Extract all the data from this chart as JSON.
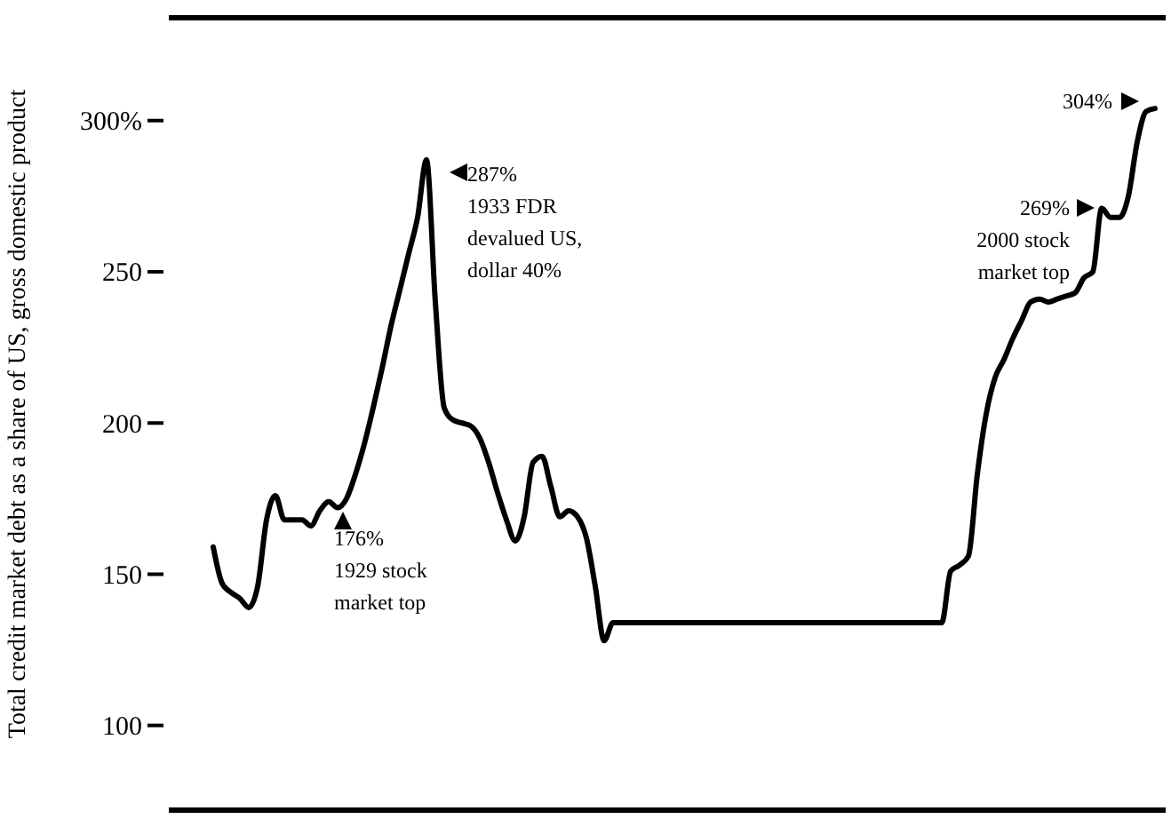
{
  "chart_data": {
    "type": "line",
    "ylabel": "Total credit market debt as a share of US, gross domestic product",
    "categories": [
      null,
      null,
      null,
      null,
      null,
      null,
      null,
      null,
      null,
      null,
      null,
      null,
      null,
      null,
      null,
      null,
      null,
      null,
      null,
      null,
      null,
      null,
      null,
      null,
      null,
      null,
      null,
      null,
      null,
      null,
      null,
      null,
      null,
      null,
      null,
      null,
      null,
      null,
      null,
      null,
      null,
      null,
      null,
      null,
      null,
      null,
      null,
      null,
      null,
      null,
      null,
      null,
      null,
      null,
      null,
      null,
      null,
      null,
      null,
      null,
      null,
      null,
      null,
      null,
      null,
      null,
      null,
      null,
      null,
      null,
      null,
      null,
      null,
      null,
      null,
      null,
      null,
      null,
      null,
      null,
      null,
      null,
      null,
      null,
      null,
      null,
      null,
      null,
      null,
      null,
      null,
      null,
      null,
      null,
      null,
      null,
      null,
      null,
      null,
      null,
      null,
      null,
      null,
      null,
      null,
      null,
      null
    ],
    "values": [
      159,
      147,
      144,
      142,
      139,
      146,
      168,
      176,
      168,
      168,
      168,
      166,
      171,
      174,
      172,
      175,
      183,
      193,
      205,
      218,
      232,
      244,
      256,
      268,
      287,
      240,
      205,
      201,
      200,
      199,
      195,
      187,
      177,
      168,
      161,
      169,
      187,
      189,
      179,
      169,
      171,
      169,
      162,
      146,
      128,
      134,
      134,
      134,
      134,
      134,
      134,
      134,
      134,
      134,
      134,
      134,
      134,
      134,
      134,
      134,
      134,
      134,
      134,
      134,
      134,
      134,
      134,
      134,
      134,
      134,
      134,
      134,
      134,
      134,
      134,
      134,
      134,
      134,
      134,
      134,
      134,
      134,
      134,
      151,
      153,
      156,
      183,
      203,
      215,
      221,
      228,
      234,
      240,
      241,
      240,
      241,
      242,
      243,
      248,
      250,
      271,
      268,
      268,
      275,
      293,
      303,
      304
    ],
    "color": "#000000",
    "ylim": [
      72,
      334
    ],
    "yticks": [
      {
        "value": 300,
        "label": "300%"
      },
      250,
      200,
      150,
      100
    ],
    "annotations": [
      "176%\n1929 stock\nmarket top",
      "287%\n1933 FDR\ndevalued US,\ndollar 40%",
      "304%",
      "269%\n2000 stock\nmarket top"
    ]
  }
}
